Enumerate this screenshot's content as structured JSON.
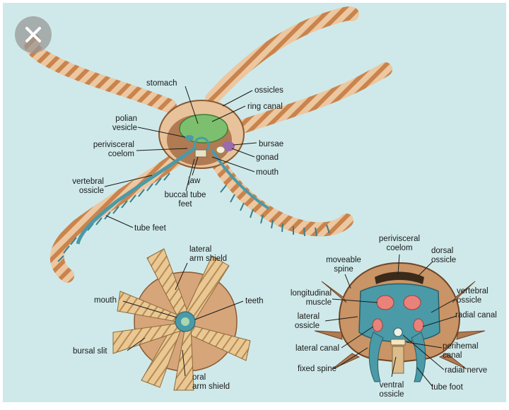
{
  "toolbar": {
    "close_icon": "close-icon"
  },
  "figure": {
    "background": "#cfe9ea",
    "body_color": "#e8c29a",
    "arm_stripe": "#c8864f",
    "water_vascular": "#4a9aa8",
    "stomach_color": "#7cbf6e",
    "gonad_color": "#9b6bb0",
    "oral_view_arm": "#e5c08c"
  },
  "aboral": {
    "stomach": "stomach",
    "ossicles": "ossicles",
    "ring_canal": "ring canal",
    "polian_vesicle": "polian\nvesicle",
    "bursae": "bursae",
    "perivisceral_coelom": "perivisceral\ncoelom",
    "gonad": "gonad",
    "mouth": "mouth",
    "jaw": "jaw",
    "vertebral_ossicle": "vertebral\nossicle",
    "buccal_tube_feet": "buccal tube\nfeet",
    "tube_feet": "tube feet"
  },
  "oral": {
    "lateral_arm_shield": "lateral\narm shield",
    "mouth": "mouth",
    "teeth": "teeth",
    "bursal_slit": "bursal slit",
    "oral_arm_shield": "oral\narm shield"
  },
  "cross": {
    "perivisceral_coelom": "perivisceral\ncoelom",
    "moveable_spine": "moveable\nspine",
    "dorsal_ossicle": "dorsal\nossicle",
    "longitudinal_muscle": "longitudinal\nmuscle",
    "vertebral_ossicle": "vertebral\nossicle",
    "lateral_ossicle": "lateral\nossicle",
    "radial_canal": "radial canal",
    "lateral_canal": "lateral canal",
    "perihemal_canal": "perihemal\ncanal",
    "fixed_spine": "fixed spine",
    "radial_nerve": "radial nerve",
    "ventral_ossicle": "ventral\nossicle",
    "tube_foot": "tube foot"
  }
}
